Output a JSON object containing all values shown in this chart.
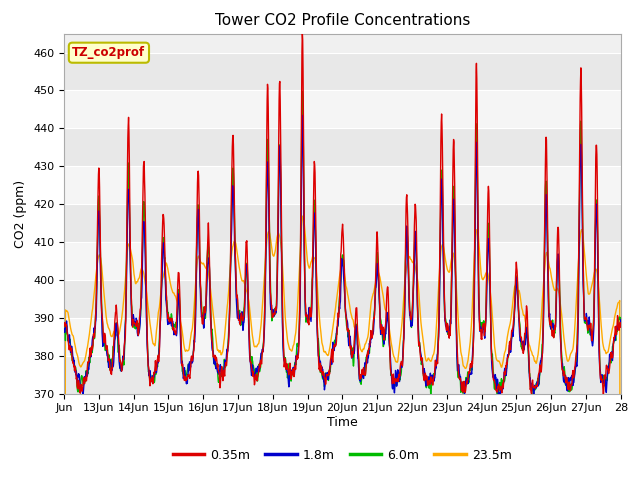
{
  "title": "Tower CO2 Profile Concentrations",
  "xlabel": "Time",
  "ylabel": "CO2 (ppm)",
  "ylim": [
    370,
    465
  ],
  "yticks": [
    370,
    380,
    390,
    400,
    410,
    420,
    430,
    440,
    450,
    460
  ],
  "legend_labels": [
    "0.35m",
    "1.8m",
    "6.0m",
    "23.5m"
  ],
  "legend_colors": [
    "#dd0000",
    "#0000cc",
    "#00bb00",
    "#ffaa00"
  ],
  "annotation_text": "TZ_co2prof",
  "annotation_color": "#cc0000",
  "annotation_bg": "#ffffcc",
  "annotation_border": "#bbbb00",
  "fig_bg": "#ffffff",
  "plot_bg_light": "#f0f0f0",
  "plot_bg_dark": "#e0e0e0",
  "x_start_day": 12.0,
  "x_end_day": 28.0,
  "xtick_days": [
    12,
    13,
    14,
    15,
    16,
    17,
    18,
    19,
    20,
    21,
    22,
    23,
    24,
    25,
    26,
    27,
    28
  ],
  "xtick_labels": [
    "Jun",
    "13Jun",
    "14Jun",
    "15Jun",
    "16Jun",
    "17Jun",
    "18Jun",
    "19Jun",
    "20Jun",
    "21Jun",
    "22Jun",
    "23Jun",
    "24Jun",
    "25Jun",
    "26Jun",
    "27Jun",
    "28"
  ]
}
